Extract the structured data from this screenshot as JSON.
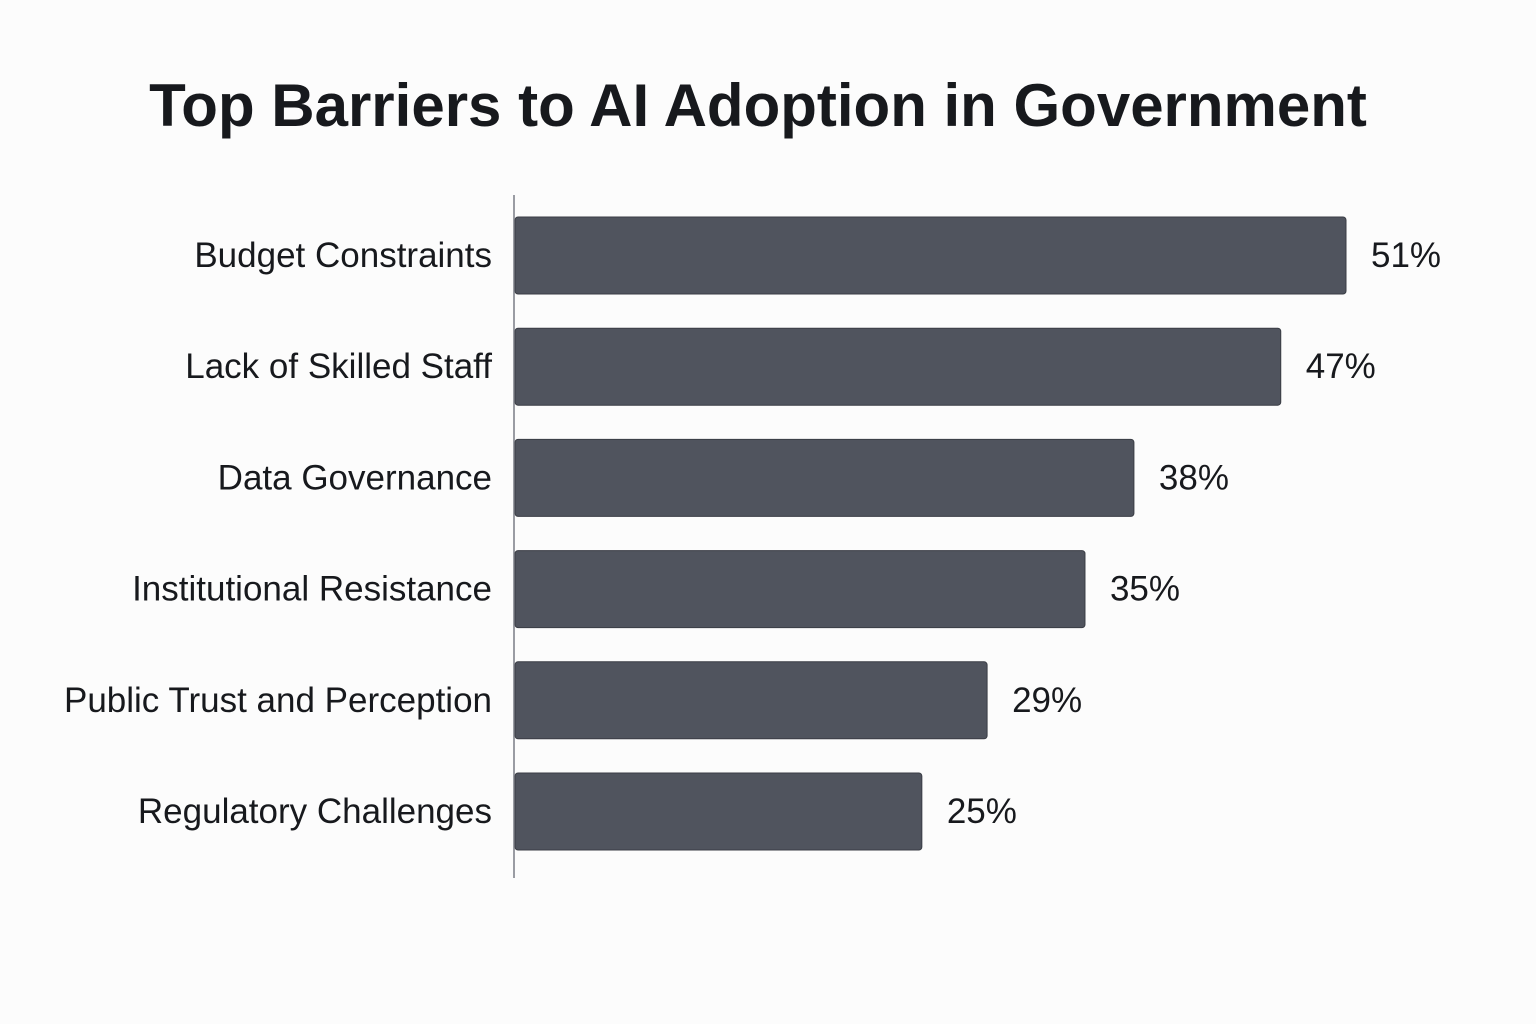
{
  "chart_data": {
    "type": "bar",
    "orientation": "horizontal",
    "title": "Top Barriers to AI Adoption in Government",
    "categories": [
      "Budget Constraints",
      "Lack of Skilled Staff",
      "Data Governance",
      "Institutional Resistance",
      "Public Trust and Perception",
      "Regulatory Challenges"
    ],
    "values": [
      51,
      47,
      38,
      35,
      29,
      25
    ],
    "value_labels": [
      "51%",
      "47%",
      "38%",
      "35%",
      "29%",
      "25%"
    ],
    "unit": "%",
    "xlim": [
      0,
      51
    ],
    "grid": false,
    "colors": {
      "bar": "#50545e",
      "bar_edge": "#3a3d45",
      "axis": "#9a9ca3",
      "text": "#17191d",
      "background": "#fcfcfc"
    }
  }
}
